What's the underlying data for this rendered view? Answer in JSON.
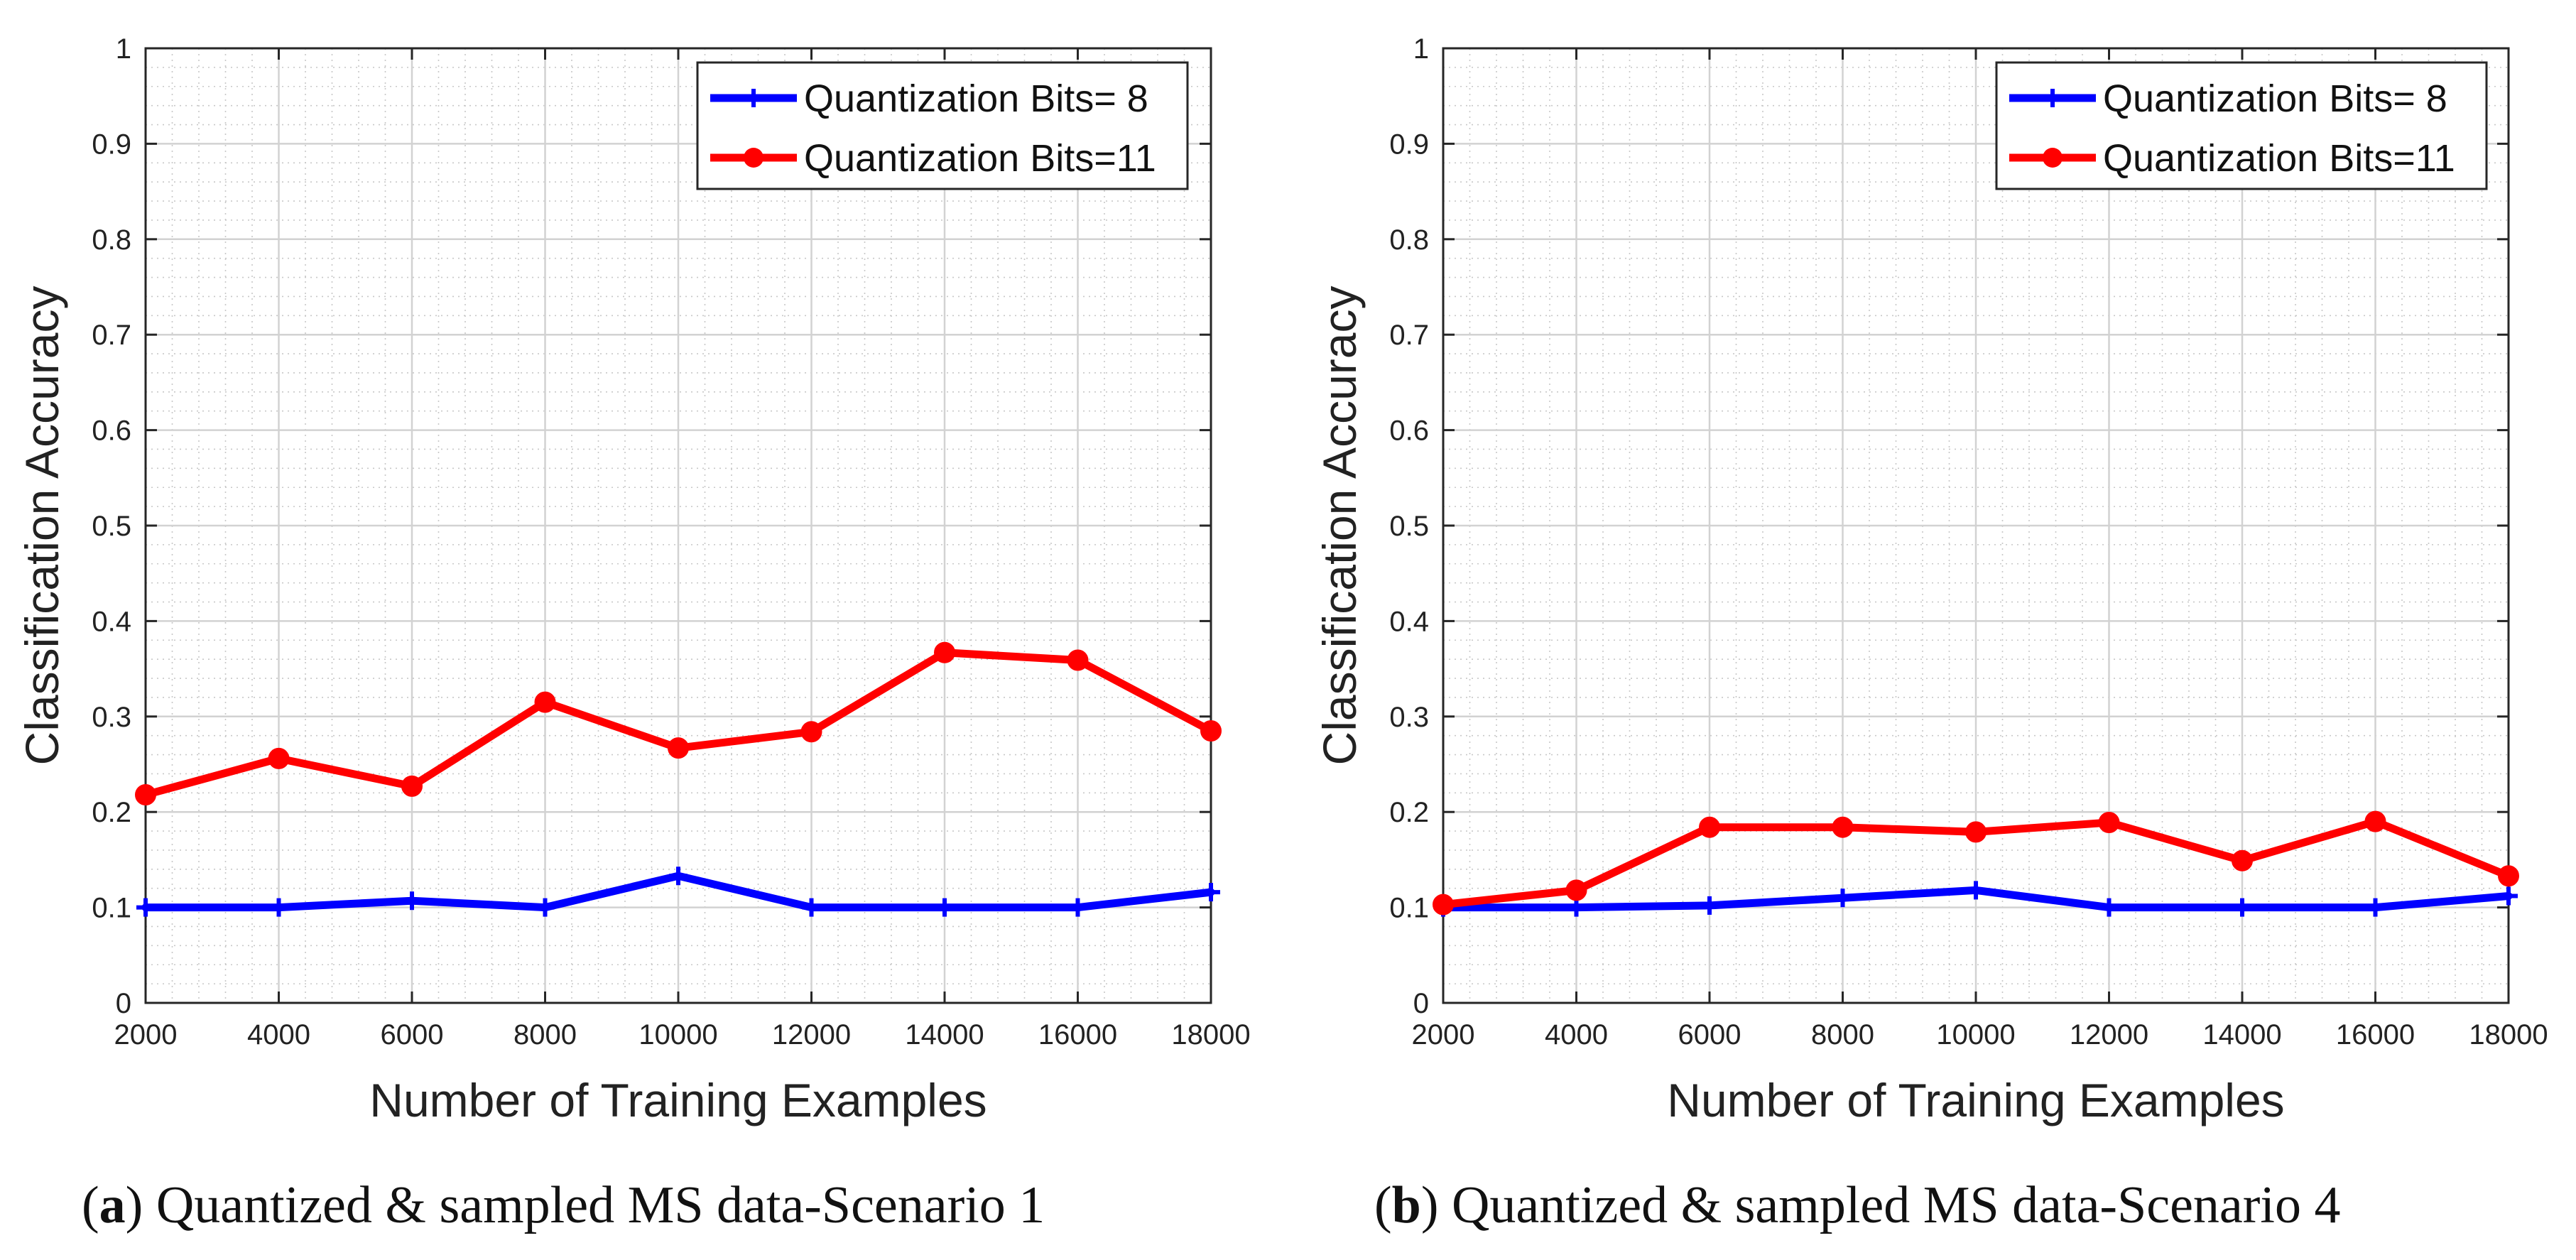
{
  "chart_data": [
    {
      "type": "line",
      "x": [
        2000,
        4000,
        6000,
        8000,
        10000,
        12000,
        14000,
        16000,
        18000
      ],
      "series": [
        {
          "name": "Quantization Bits= 8",
          "color": "#0000ff",
          "marker": "plus",
          "values": [
            0.1,
            0.1,
            0.107,
            0.1,
            0.133,
            0.1,
            0.1,
            0.1,
            0.116
          ]
        },
        {
          "name": "Quantization Bits=11",
          "color": "#ff0000",
          "marker": "circle",
          "values": [
            0.218,
            0.256,
            0.227,
            0.315,
            0.267,
            0.284,
            0.367,
            0.359,
            0.285
          ]
        }
      ],
      "xlabel": "Number of Training Examples",
      "ylabel": "Classification Accuracy",
      "xlim": [
        2000,
        18000
      ],
      "ylim": [
        0,
        1
      ],
      "xticks": [
        "2000",
        "4000",
        "6000",
        "8000",
        "10000",
        "12000",
        "14000",
        "16000",
        "18000"
      ],
      "yticks": [
        "0",
        "0.1",
        "0.2",
        "0.3",
        "0.4",
        "0.5",
        "0.6",
        "0.7",
        "0.8",
        "0.9",
        "1"
      ],
      "grid": true,
      "legend_position": "top-right",
      "caption_letter": "a",
      "caption_text": "Quantized & sampled MS data-Scenario 1"
    },
    {
      "type": "line",
      "x": [
        2000,
        4000,
        6000,
        8000,
        10000,
        12000,
        14000,
        16000,
        18000
      ],
      "series": [
        {
          "name": "Quantization Bits= 8",
          "color": "#0000ff",
          "marker": "plus",
          "values": [
            0.1,
            0.1,
            0.102,
            0.11,
            0.118,
            0.1,
            0.1,
            0.1,
            0.112
          ]
        },
        {
          "name": "Quantization Bits=11",
          "color": "#ff0000",
          "marker": "circle",
          "values": [
            0.103,
            0.118,
            0.184,
            0.184,
            0.179,
            0.189,
            0.149,
            0.19,
            0.133
          ]
        }
      ],
      "xlabel": "Number of Training Examples",
      "ylabel": "Classification Accuracy",
      "xlim": [
        2000,
        18000
      ],
      "ylim": [
        0,
        1
      ],
      "xticks": [
        "2000",
        "4000",
        "6000",
        "8000",
        "10000",
        "12000",
        "14000",
        "16000",
        "18000"
      ],
      "yticks": [
        "0",
        "0.1",
        "0.2",
        "0.3",
        "0.4",
        "0.5",
        "0.6",
        "0.7",
        "0.8",
        "0.9",
        "1"
      ],
      "grid": true,
      "legend_position": "top-right",
      "caption_letter": "b",
      "caption_text": "Quantized & sampled MS data-Scenario 4"
    }
  ],
  "captions": [
    {
      "open": "(",
      "letter": "a",
      "close": ")",
      "text": " Quantized & sampled MS data-Scenario 1"
    },
    {
      "open": "(",
      "letter": "b",
      "close": ")",
      "text": " Quantized & sampled MS data-Scenario 4"
    }
  ]
}
